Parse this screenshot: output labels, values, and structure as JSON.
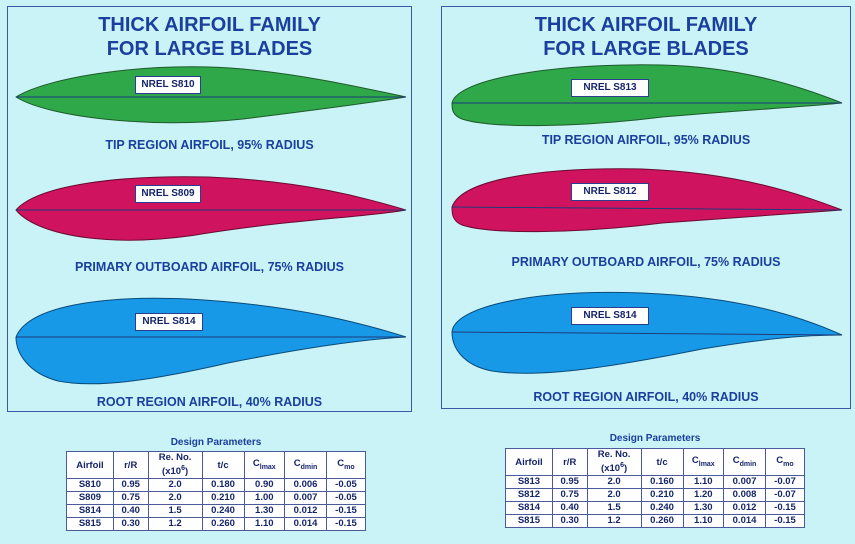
{
  "left": {
    "title_line1": "THICK AIRFOIL FAMILY",
    "title_line2": "FOR LARGE BLADES",
    "airfoils": [
      {
        "name": "NREL S810",
        "caption": "TIP REGION AIRFOIL, 95% RADIUS",
        "color": "#2fa84a"
      },
      {
        "name": "NREL S809",
        "caption": "PRIMARY OUTBOARD AIRFOIL, 75% RADIUS",
        "color": "#d0135f"
      },
      {
        "name": "NREL S814",
        "caption": "ROOT REGION AIRFOIL, 40% RADIUS",
        "color": "#1899e8"
      }
    ]
  },
  "right": {
    "title_line1": "THICK AIRFOIL FAMILY",
    "title_line2": "FOR LARGE BLADES",
    "airfoils": [
      {
        "name": "NREL  S813",
        "caption": "TIP REGION AIRFOIL, 95% RADIUS",
        "color": "#2fa84a"
      },
      {
        "name": "NREL  S812",
        "caption": "PRIMARY OUTBOARD AIRFOIL, 75% RADIUS",
        "color": "#d0135f"
      },
      {
        "name": "NREL S814",
        "caption": "ROOT REGION AIRFOIL, 40% RADIUS",
        "color": "#1899e8"
      }
    ]
  },
  "tables": {
    "title": "Design Parameters",
    "headers": {
      "airfoil": "Airfoil",
      "rR": "r/R",
      "re_line1": "Re. No.",
      "re_base": "(x10",
      "re_exp": "6",
      "re_close": ")",
      "tc": "t/c",
      "cl": "C",
      "cl_sub": "lmax",
      "cd": "C",
      "cd_sub": "dmin",
      "cm": "C",
      "cm_sub": "mo"
    },
    "left_rows": [
      [
        "S810",
        "0.95",
        "2.0",
        "0.180",
        "0.90",
        "0.006",
        "-0.05"
      ],
      [
        "S809",
        "0.75",
        "2.0",
        "0.210",
        "1.00",
        "0.007",
        "-0.05"
      ],
      [
        "S814",
        "0.40",
        "1.5",
        "0.240",
        "1.30",
        "0.012",
        "-0.15"
      ],
      [
        "S815",
        "0.30",
        "1.2",
        "0.260",
        "1.10",
        "0.014",
        "-0.15"
      ]
    ],
    "right_rows": [
      [
        "S813",
        "0.95",
        "2.0",
        "0.160",
        "1.10",
        "0.007",
        "-0.07"
      ],
      [
        "S812",
        "0.75",
        "2.0",
        "0.210",
        "1.20",
        "0.008",
        "-0.07"
      ],
      [
        "S814",
        "0.40",
        "1.5",
        "0.240",
        "1.30",
        "0.012",
        "-0.15"
      ],
      [
        "S815",
        "0.30",
        "1.2",
        "0.260",
        "1.10",
        "0.014",
        "-0.15"
      ]
    ]
  }
}
